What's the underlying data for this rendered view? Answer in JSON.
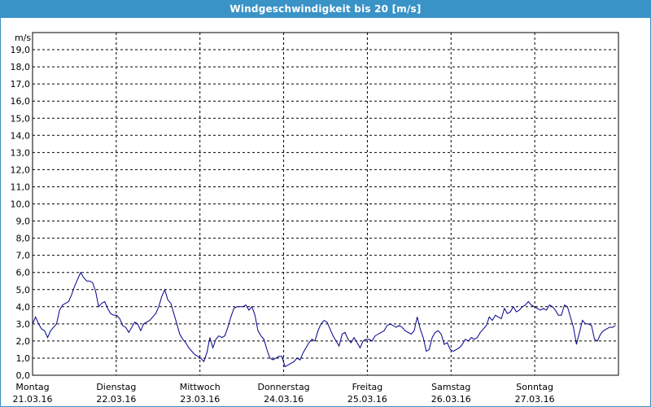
{
  "chart_data": {
    "type": "line",
    "title": "Windgeschwindigkeit bis 20 [m/s]",
    "ylabel": "m/s",
    "ylim": [
      0,
      20
    ],
    "y_ticks": [
      "0,0",
      "1,0",
      "2,0",
      "3,0",
      "4,0",
      "5,0",
      "6,0",
      "7,0",
      "8,0",
      "9,0",
      "10,0",
      "11,0",
      "12,0",
      "13,0",
      "14,0",
      "15,0",
      "16,0",
      "17,0",
      "18,0",
      "19,0"
    ],
    "x_ticks": [
      {
        "day": "Montag",
        "date": "21.03.16"
      },
      {
        "day": "Dienstag",
        "date": "22.03.16"
      },
      {
        "day": "Mittwoch",
        "date": "23.03.16"
      },
      {
        "day": "Donnerstag",
        "date": "24.03.16"
      },
      {
        "day": "Freitag",
        "date": "25.03.16"
      },
      {
        "day": "Samstag",
        "date": "26.03.16"
      },
      {
        "day": "Sonntag",
        "date": "27.03.16"
      }
    ],
    "grid": true,
    "line_color": "#00008b",
    "series": [
      {
        "values": [
          3.0,
          3.4,
          3.0,
          2.7,
          2.6,
          2.2,
          2.6,
          2.8,
          3.0,
          3.8,
          4.1,
          4.2,
          4.3,
          4.7,
          5.2,
          5.6,
          6.0,
          5.7,
          5.5,
          5.5,
          5.4,
          4.9,
          4.0,
          4.2,
          4.3,
          3.9,
          3.6,
          3.5,
          3.5,
          3.3,
          2.9,
          2.8,
          2.5,
          2.8,
          3.1,
          3.0,
          2.6,
          3.0,
          3.1,
          3.2,
          3.4,
          3.6,
          4.0,
          4.6,
          5.0,
          4.4,
          4.2,
          3.6,
          3.0,
          2.4,
          2.1,
          1.9,
          1.6,
          1.4,
          1.2,
          1.1,
          1.0,
          0.8,
          1.3,
          2.2,
          1.6,
          2.1,
          2.3,
          2.2,
          2.3,
          2.8,
          3.4,
          3.9,
          4.0,
          4.0,
          4.0,
          4.1,
          3.8,
          4.0,
          3.5,
          2.6,
          2.3,
          2.1,
          1.5,
          1.0,
          0.9,
          1.0,
          1.1,
          1.1,
          0.5,
          0.6,
          0.7,
          0.8,
          1.0,
          0.9,
          1.3,
          1.6,
          1.9,
          2.1,
          2.0,
          2.6,
          3.0,
          3.2,
          3.1,
          2.7,
          2.3,
          2.0,
          1.7,
          2.4,
          2.5,
          2.1,
          1.9,
          2.2,
          1.9,
          1.6,
          2.0,
          2.1,
          2.1,
          2.0,
          2.3,
          2.4,
          2.5,
          2.6,
          2.9,
          3.0,
          2.9,
          2.8,
          2.9,
          2.8,
          2.6,
          2.5,
          2.4,
          2.6,
          3.4,
          2.7,
          2.2,
          1.4,
          1.5,
          2.2,
          2.5,
          2.6,
          2.4,
          1.8,
          1.9,
          1.5,
          1.4,
          1.5,
          1.6,
          1.8,
          2.1,
          2.0,
          2.2,
          2.1,
          2.2,
          2.5,
          2.7,
          2.9,
          3.4,
          3.2,
          3.5,
          3.4,
          3.3,
          3.9,
          3.6,
          3.7,
          4.0,
          3.7,
          3.8,
          4.0,
          4.1,
          4.3,
          4.1,
          4.0,
          3.9,
          3.8,
          3.9,
          3.8,
          4.1,
          4.0,
          3.8,
          3.5,
          3.5,
          4.1,
          4.0,
          3.4,
          2.8,
          1.8,
          2.5,
          3.2,
          3.0,
          3.0,
          2.9,
          2.1,
          2.0,
          2.4,
          2.6,
          2.7,
          2.8,
          2.8,
          2.9
        ]
      }
    ]
  }
}
